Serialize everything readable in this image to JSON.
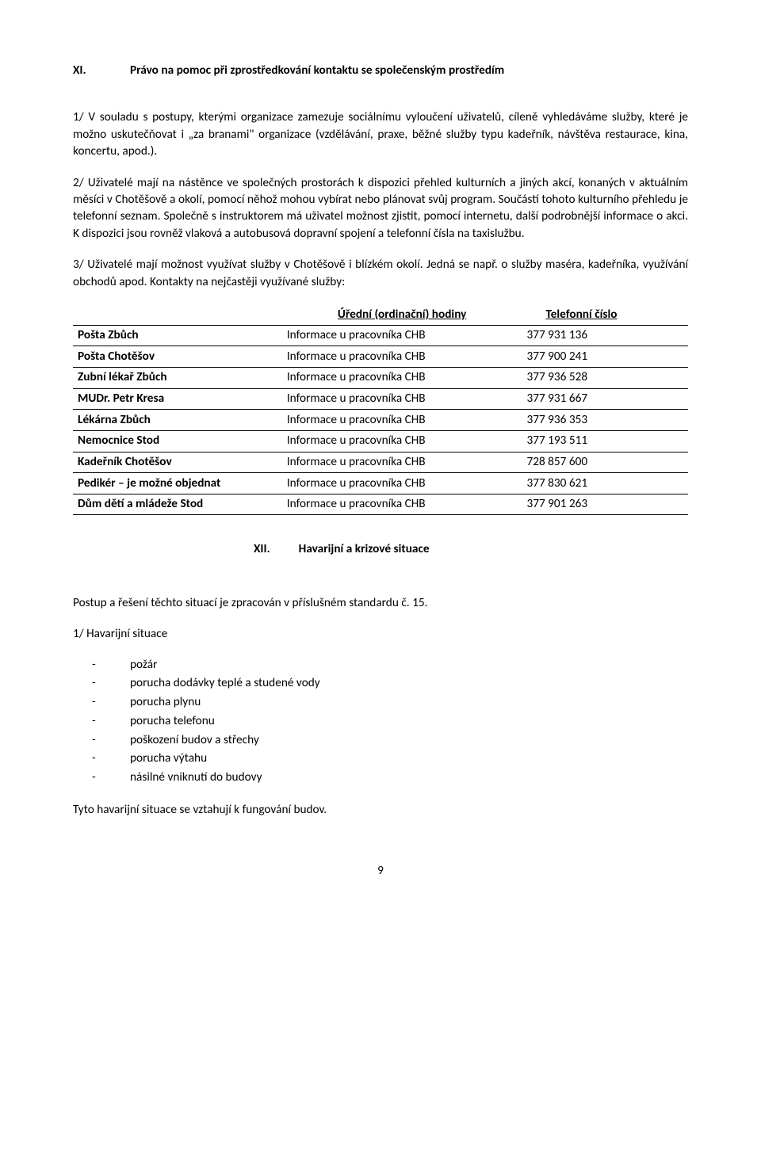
{
  "heading1": {
    "num": "XI.",
    "title": "Právo na pomoc při zprostředkování kontaktu se společenským prostředím"
  },
  "para1": "1/ V souladu s postupy, kterými organizace zamezuje sociálnímu vyloučení uživatelů, cíleně vyhledáváme služby, které je možno uskutečňovat i „za branami\" organizace (vzdělávání, praxe, běžné služby typu kadeřník, návštěva restaurace, kina, koncertu, apod.).",
  "para2": "2/ Uživatelé mají na nástěnce ve společných prostorách k dispozici přehled kulturních a jiných akcí, konaných v aktuálním měsíci v Chotěšově a okolí, pomocí něhož mohou vybírat nebo plánovat svůj program. Součástí tohoto kulturního přehledu je telefonní seznam. Společně s instruktorem má uživatel možnost zjistit, pomocí internetu, další podrobnější informace o akci. K dispozici jsou rovněž vlaková a autobusová dopravní spojení a telefonní čísla na taxislužbu.",
  "para3": "3/ Uživatelé mají možnost využívat služby v Chotěšově i blízkém okolí. Jedná se např. o služby maséra, kadeřníka, využívání obchodů apod. Kontakty na nejčastěji využívané služby:",
  "table": {
    "header": {
      "hours": "Úřední (ordinační) hodiny",
      "phone": "Telefonní číslo"
    },
    "rows": [
      {
        "name": "Pošta Zbůch",
        "hours": "Informace u pracovníka CHB",
        "phone": "377 931 136"
      },
      {
        "name": "Pošta Chotěšov",
        "hours": "Informace u pracovníka CHB",
        "phone": "377 900 241"
      },
      {
        "name": "Zubní lékař Zbůch",
        "hours": "Informace u pracovníka CHB",
        "phone": "377 936 528"
      },
      {
        "name": "MUDr. Petr Kresa",
        "hours": "Informace u pracovníka CHB",
        "phone": "377 931 667"
      },
      {
        "name": "Lékárna Zbůch",
        "hours": "Informace u pracovníka CHB",
        "phone": "377 936 353"
      },
      {
        "name": "Nemocnice Stod",
        "hours": "Informace u pracovníka CHB",
        "phone": "377 193 511"
      },
      {
        "name": "Kadeřník Chotěšov",
        "hours": "Informace u pracovníka CHB",
        "phone": "728 857 600"
      },
      {
        "name": "Pedikér – je možné objednat",
        "hours": "Informace u pracovníka CHB",
        "phone": "377 830 621"
      },
      {
        "name": "Dům dětí a mládeže Stod",
        "hours": "Informace u pracovníka CHB",
        "phone": "377 901 263"
      }
    ]
  },
  "heading2": {
    "num": "XII.",
    "title": "Havarijní a krizové situace"
  },
  "para4": "Postup a řešení těchto situací je zpracován v příslušném standardu č. 15.",
  "sub1": "1/ Havarijní situace",
  "list1": [
    "požár",
    "porucha dodávky teplé a studené vody",
    "porucha plynu",
    "porucha telefonu",
    "poškození budov a střechy",
    "porucha výtahu",
    "násilné vniknutí do budovy"
  ],
  "para5": "Tyto havarijní situace se vztahují k fungování budov.",
  "pageNumber": "9"
}
